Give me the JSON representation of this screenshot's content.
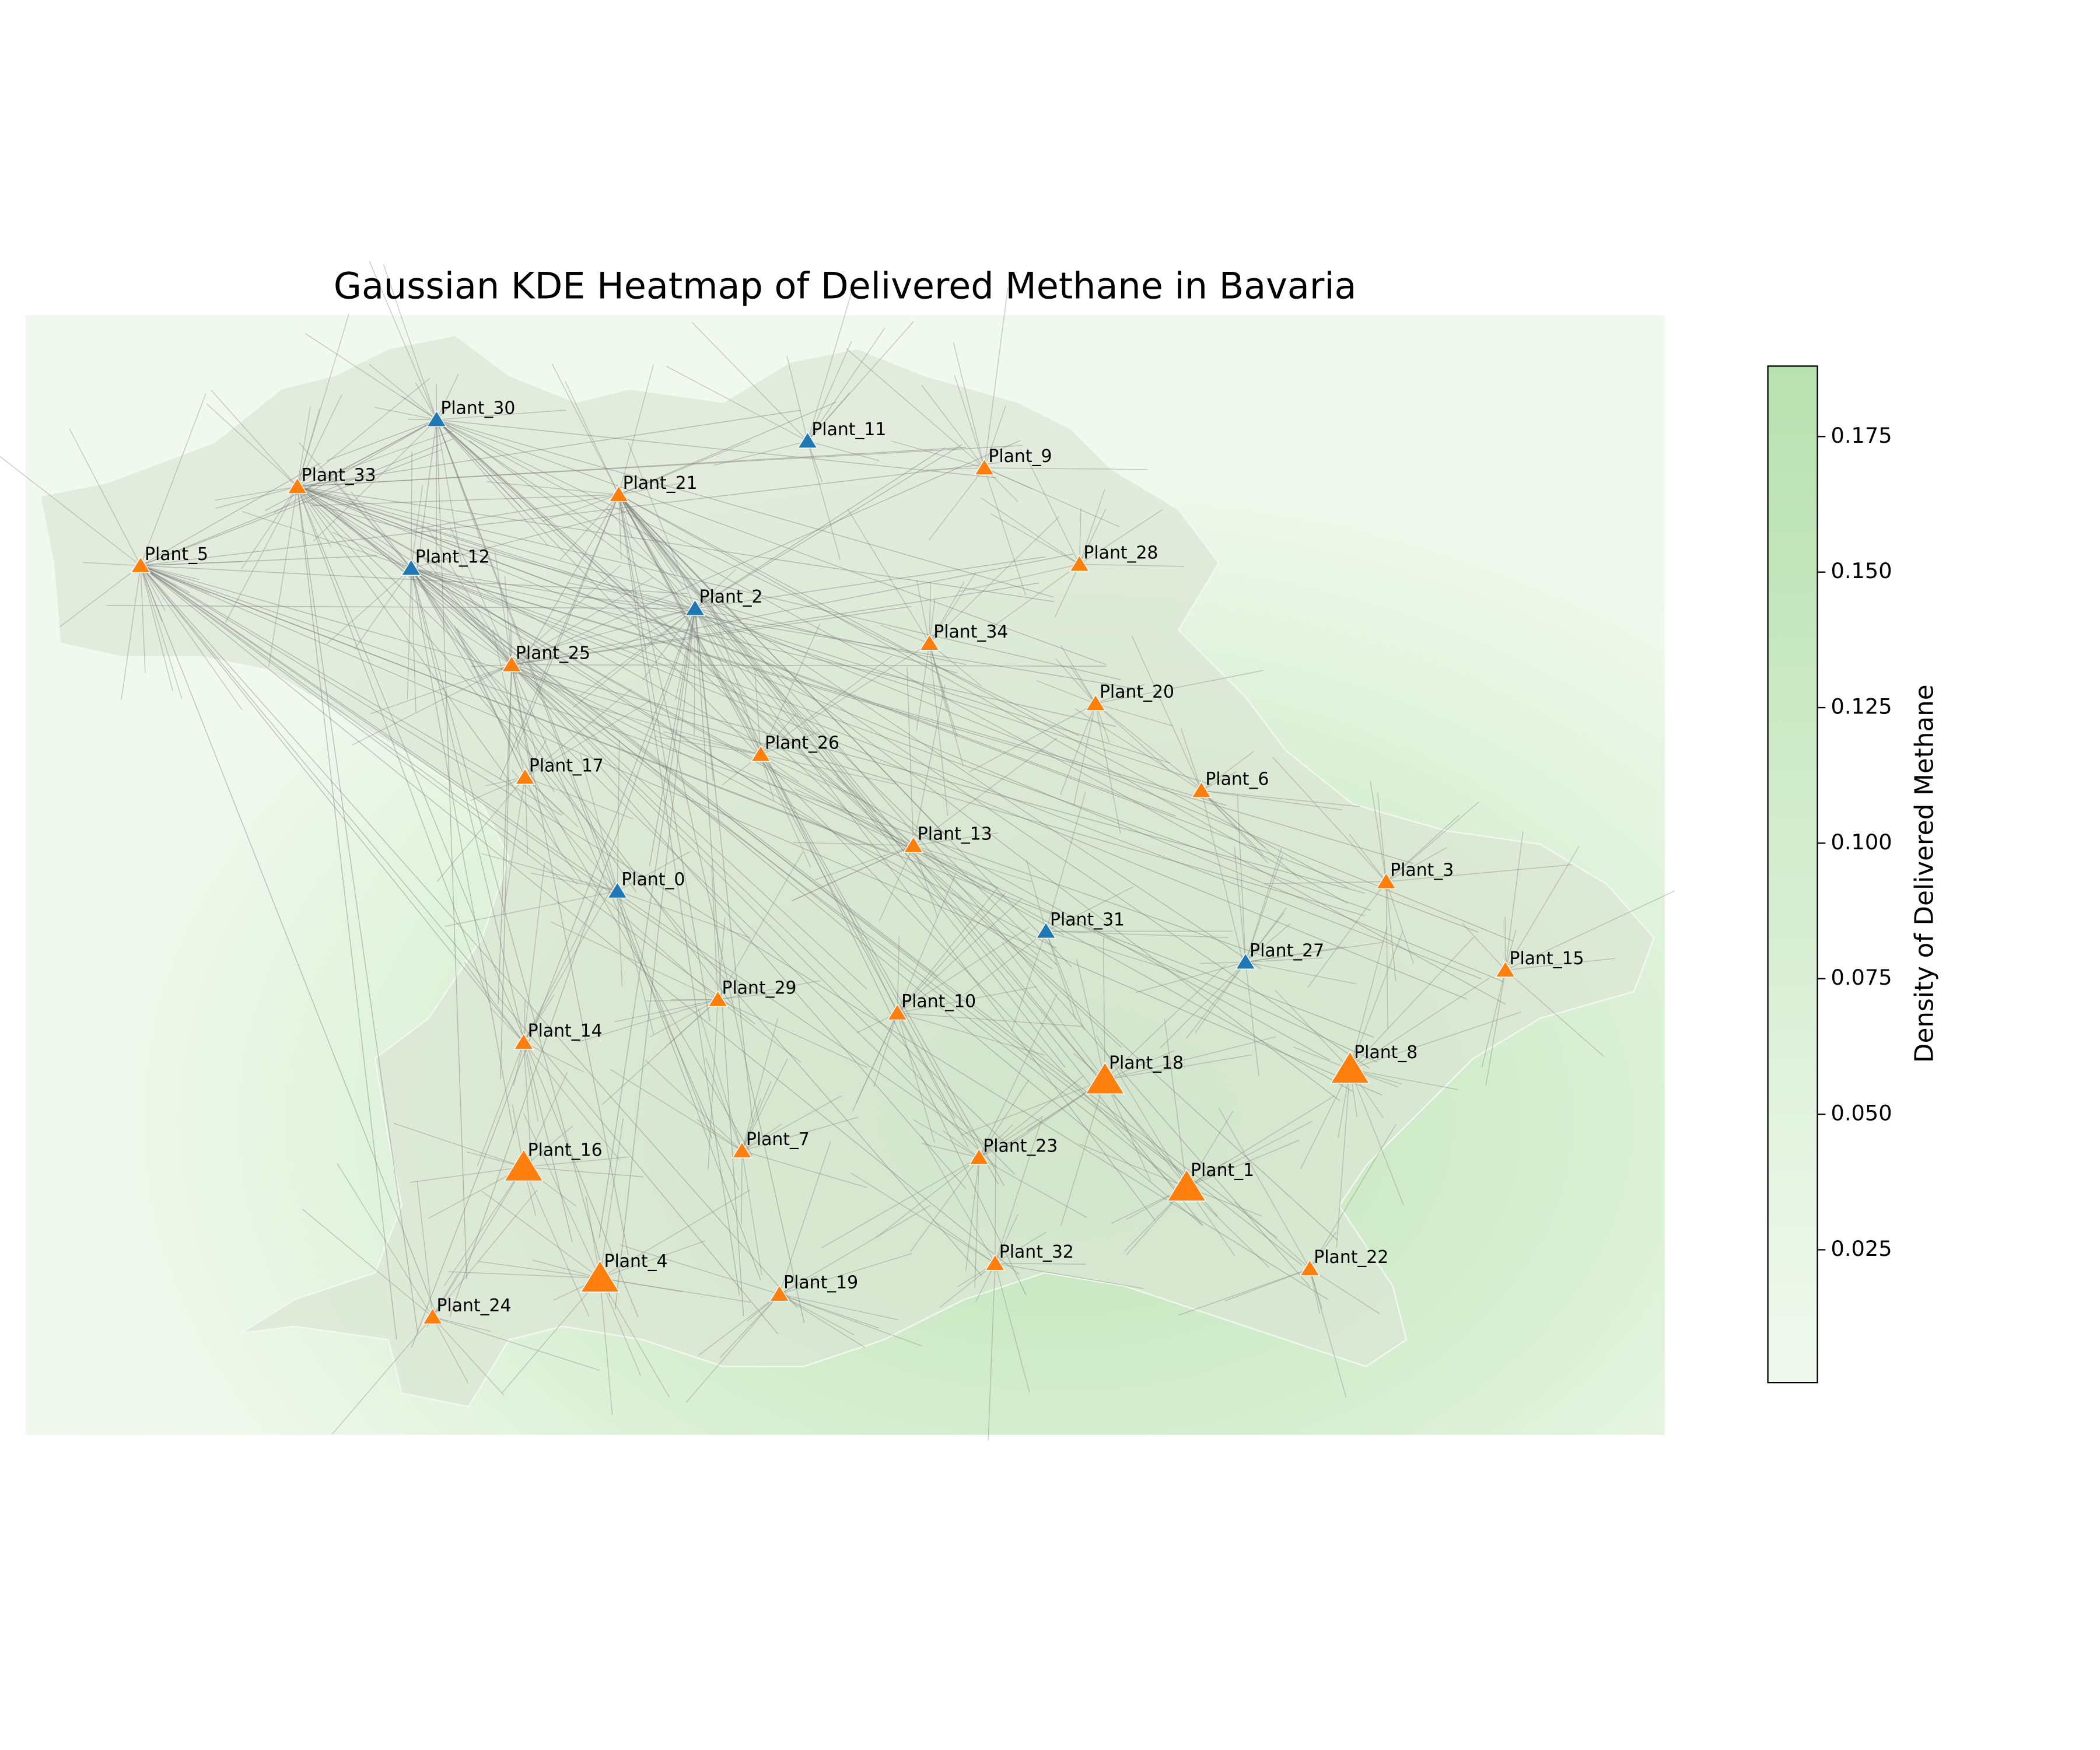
{
  "chart_data": {
    "type": "map",
    "title": "Gaussian KDE Heatmap of Delivered Methane in Bavaria",
    "plants": [
      {
        "name": "Plant_0",
        "color": "#1f77b4"
      },
      {
        "name": "Plant_1",
        "color": "#ff7f0e"
      },
      {
        "name": "Plant_2",
        "color": "#1f77b4"
      },
      {
        "name": "Plant_3",
        "color": "#ff7f0e"
      },
      {
        "name": "Plant_4",
        "color": "#ff7f0e"
      },
      {
        "name": "Plant_5",
        "color": "#ff7f0e"
      },
      {
        "name": "Plant_6",
        "color": "#ff7f0e"
      },
      {
        "name": "Plant_7",
        "color": "#ff7f0e"
      },
      {
        "name": "Plant_8",
        "color": "#ff7f0e"
      },
      {
        "name": "Plant_9",
        "color": "#ff7f0e"
      },
      {
        "name": "Plant_10",
        "color": "#ff7f0e"
      },
      {
        "name": "Plant_11",
        "color": "#1f77b4"
      },
      {
        "name": "Plant_12",
        "color": "#1f77b4"
      },
      {
        "name": "Plant_13",
        "color": "#ff7f0e"
      },
      {
        "name": "Plant_14",
        "color": "#ff7f0e"
      },
      {
        "name": "Plant_15",
        "color": "#ff7f0e"
      },
      {
        "name": "Plant_16",
        "color": "#ff7f0e"
      },
      {
        "name": "Plant_17",
        "color": "#ff7f0e"
      },
      {
        "name": "Plant_18",
        "color": "#ff7f0e"
      },
      {
        "name": "Plant_19",
        "color": "#ff7f0e"
      },
      {
        "name": "Plant_20",
        "color": "#ff7f0e"
      },
      {
        "name": "Plant_21",
        "color": "#ff7f0e"
      },
      {
        "name": "Plant_22",
        "color": "#ff7f0e"
      },
      {
        "name": "Plant_23",
        "color": "#ff7f0e"
      },
      {
        "name": "Plant_24",
        "color": "#ff7f0e"
      },
      {
        "name": "Plant_25",
        "color": "#ff7f0e"
      },
      {
        "name": "Plant_26",
        "color": "#ff7f0e"
      },
      {
        "name": "Plant_27",
        "color": "#1f77b4"
      },
      {
        "name": "Plant_28",
        "color": "#ff7f0e"
      },
      {
        "name": "Plant_29",
        "color": "#ff7f0e"
      },
      {
        "name": "Plant_30",
        "color": "#1f77b4"
      },
      {
        "name": "Plant_31",
        "color": "#1f77b4"
      },
      {
        "name": "Plant_32",
        "color": "#ff7f0e"
      },
      {
        "name": "Plant_33",
        "color": "#ff7f0e"
      },
      {
        "name": "Plant_34",
        "color": "#ff7f0e"
      }
    ],
    "colorbar": {
      "label": "Density of Delivered Methane",
      "lim": [
        0.0005,
        0.188
      ],
      "ticks": [
        0.025,
        {
          "value": 0.05,
          "label": "0.050"
        },
        0.075,
        {
          "value": 0.1,
          "label": "0.100"
        },
        0.125,
        {
          "value": 0.15,
          "label": "0.150"
        },
        0.175
      ]
    }
  }
}
